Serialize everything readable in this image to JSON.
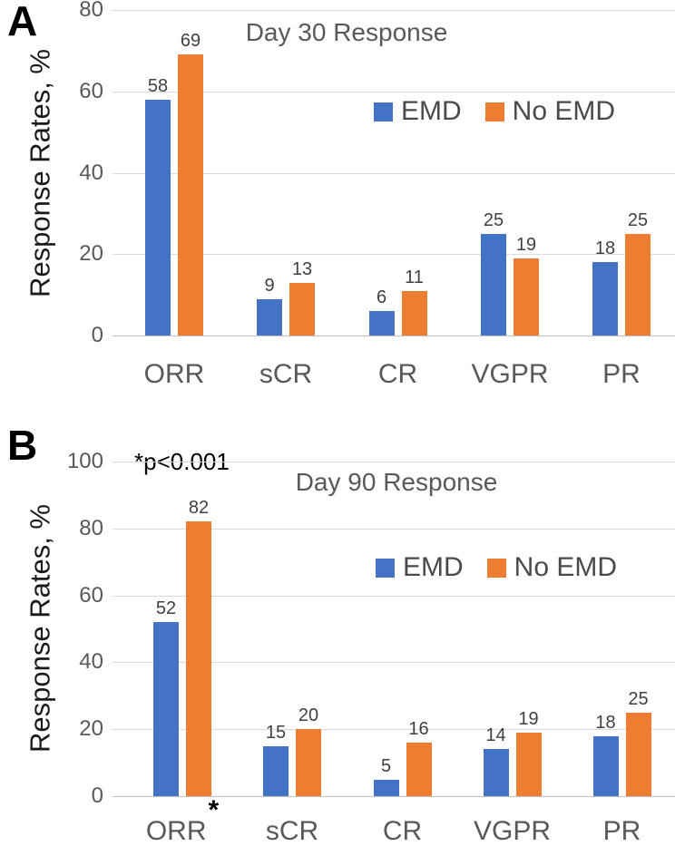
{
  "style": {
    "emd_color": "#4472C4",
    "no_emd_color": "#ED7D31",
    "gridline_color": "#D9D9D9",
    "axis_line_color": "#BFBFBF",
    "tick_text_color": "#595959",
    "category_text_color": "#595959",
    "title_text_color": "#595959",
    "legend_text_color": "#4A4A4A",
    "data_label_color": "#404040",
    "axis_title_color": "#1A1A1A",
    "panel_letter_color": "#000000",
    "annotation_color": "#000000"
  },
  "chart_data": [
    {
      "type": "bar",
      "panel_label": "A",
      "title": "Day 30 Response",
      "ylabel": "Response Rates, %",
      "xlabel": "",
      "ylim": [
        0,
        80
      ],
      "yticks": [
        80,
        60,
        40,
        20,
        0
      ],
      "grid": true,
      "data_labels": true,
      "legend_position": "inside-upper-right",
      "categories": [
        "ORR",
        "sCR",
        "CR",
        "VGPR",
        "PR"
      ],
      "category_suffixes": [
        "",
        "",
        "",
        "",
        ""
      ],
      "series": [
        {
          "name": "EMD",
          "color": "#4472C4",
          "values": [
            58,
            9,
            6,
            25,
            18
          ]
        },
        {
          "name": "No EMD",
          "color": "#ED7D31",
          "values": [
            69,
            13,
            11,
            19,
            25
          ]
        }
      ]
    },
    {
      "type": "bar",
      "panel_label": "B",
      "title": "Day 90 Response",
      "annotation": "*p<0.001",
      "ylabel": "Response Rates, %",
      "xlabel": "",
      "ylim": [
        0,
        100
      ],
      "yticks": [
        100,
        80,
        60,
        40,
        20,
        0
      ],
      "grid": true,
      "data_labels": true,
      "legend_position": "inside-upper-right",
      "categories": [
        "ORR",
        "sCR",
        "CR",
        "VGPR",
        "PR"
      ],
      "category_suffixes": [
        "*",
        "",
        "",
        "",
        ""
      ],
      "series": [
        {
          "name": "EMD",
          "color": "#4472C4",
          "values": [
            52,
            15,
            5,
            14,
            18
          ]
        },
        {
          "name": "No EMD",
          "color": "#ED7D31",
          "values": [
            82,
            20,
            16,
            19,
            25
          ]
        }
      ]
    }
  ]
}
